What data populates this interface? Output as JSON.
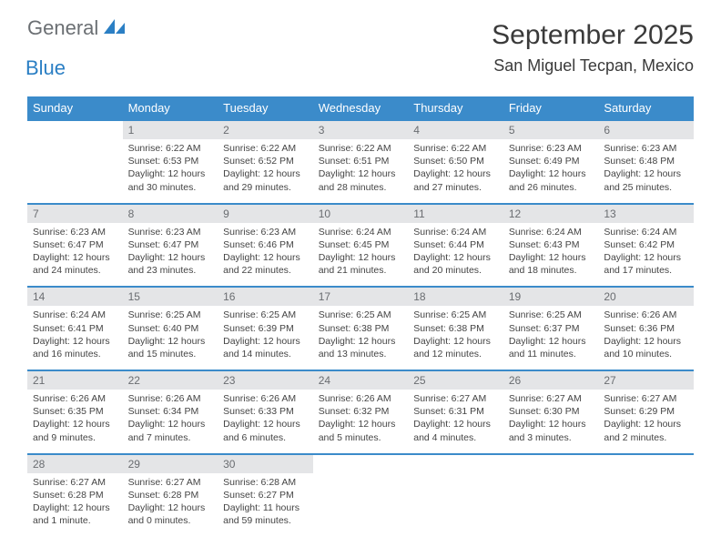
{
  "logo": {
    "text1": "General",
    "text2": "Blue",
    "icon_fill": "#2b7fc4"
  },
  "title": "September 2025",
  "location": "San Miguel Tecpan, Mexico",
  "colors": {
    "header_bg": "#3b8bca",
    "header_fg": "#ffffff",
    "daynum_bg": "#e4e5e7",
    "daynum_fg": "#6a6d71",
    "rule": "#3b8bca",
    "body_text": "#444444",
    "title_text": "#3a3a3a"
  },
  "day_headers": [
    "Sunday",
    "Monday",
    "Tuesday",
    "Wednesday",
    "Thursday",
    "Friday",
    "Saturday"
  ],
  "weeks": [
    [
      null,
      {
        "n": "1",
        "sunrise": "6:22 AM",
        "sunset": "6:53 PM",
        "daylight": "12 hours and 30 minutes."
      },
      {
        "n": "2",
        "sunrise": "6:22 AM",
        "sunset": "6:52 PM",
        "daylight": "12 hours and 29 minutes."
      },
      {
        "n": "3",
        "sunrise": "6:22 AM",
        "sunset": "6:51 PM",
        "daylight": "12 hours and 28 minutes."
      },
      {
        "n": "4",
        "sunrise": "6:22 AM",
        "sunset": "6:50 PM",
        "daylight": "12 hours and 27 minutes."
      },
      {
        "n": "5",
        "sunrise": "6:23 AM",
        "sunset": "6:49 PM",
        "daylight": "12 hours and 26 minutes."
      },
      {
        "n": "6",
        "sunrise": "6:23 AM",
        "sunset": "6:48 PM",
        "daylight": "12 hours and 25 minutes."
      }
    ],
    [
      {
        "n": "7",
        "sunrise": "6:23 AM",
        "sunset": "6:47 PM",
        "daylight": "12 hours and 24 minutes."
      },
      {
        "n": "8",
        "sunrise": "6:23 AM",
        "sunset": "6:47 PM",
        "daylight": "12 hours and 23 minutes."
      },
      {
        "n": "9",
        "sunrise": "6:23 AM",
        "sunset": "6:46 PM",
        "daylight": "12 hours and 22 minutes."
      },
      {
        "n": "10",
        "sunrise": "6:24 AM",
        "sunset": "6:45 PM",
        "daylight": "12 hours and 21 minutes."
      },
      {
        "n": "11",
        "sunrise": "6:24 AM",
        "sunset": "6:44 PM",
        "daylight": "12 hours and 20 minutes."
      },
      {
        "n": "12",
        "sunrise": "6:24 AM",
        "sunset": "6:43 PM",
        "daylight": "12 hours and 18 minutes."
      },
      {
        "n": "13",
        "sunrise": "6:24 AM",
        "sunset": "6:42 PM",
        "daylight": "12 hours and 17 minutes."
      }
    ],
    [
      {
        "n": "14",
        "sunrise": "6:24 AM",
        "sunset": "6:41 PM",
        "daylight": "12 hours and 16 minutes."
      },
      {
        "n": "15",
        "sunrise": "6:25 AM",
        "sunset": "6:40 PM",
        "daylight": "12 hours and 15 minutes."
      },
      {
        "n": "16",
        "sunrise": "6:25 AM",
        "sunset": "6:39 PM",
        "daylight": "12 hours and 14 minutes."
      },
      {
        "n": "17",
        "sunrise": "6:25 AM",
        "sunset": "6:38 PM",
        "daylight": "12 hours and 13 minutes."
      },
      {
        "n": "18",
        "sunrise": "6:25 AM",
        "sunset": "6:38 PM",
        "daylight": "12 hours and 12 minutes."
      },
      {
        "n": "19",
        "sunrise": "6:25 AM",
        "sunset": "6:37 PM",
        "daylight": "12 hours and 11 minutes."
      },
      {
        "n": "20",
        "sunrise": "6:26 AM",
        "sunset": "6:36 PM",
        "daylight": "12 hours and 10 minutes."
      }
    ],
    [
      {
        "n": "21",
        "sunrise": "6:26 AM",
        "sunset": "6:35 PM",
        "daylight": "12 hours and 9 minutes."
      },
      {
        "n": "22",
        "sunrise": "6:26 AM",
        "sunset": "6:34 PM",
        "daylight": "12 hours and 7 minutes."
      },
      {
        "n": "23",
        "sunrise": "6:26 AM",
        "sunset": "6:33 PM",
        "daylight": "12 hours and 6 minutes."
      },
      {
        "n": "24",
        "sunrise": "6:26 AM",
        "sunset": "6:32 PM",
        "daylight": "12 hours and 5 minutes."
      },
      {
        "n": "25",
        "sunrise": "6:27 AM",
        "sunset": "6:31 PM",
        "daylight": "12 hours and 4 minutes."
      },
      {
        "n": "26",
        "sunrise": "6:27 AM",
        "sunset": "6:30 PM",
        "daylight": "12 hours and 3 minutes."
      },
      {
        "n": "27",
        "sunrise": "6:27 AM",
        "sunset": "6:29 PM",
        "daylight": "12 hours and 2 minutes."
      }
    ],
    [
      {
        "n": "28",
        "sunrise": "6:27 AM",
        "sunset": "6:28 PM",
        "daylight": "12 hours and 1 minute."
      },
      {
        "n": "29",
        "sunrise": "6:27 AM",
        "sunset": "6:28 PM",
        "daylight": "12 hours and 0 minutes."
      },
      {
        "n": "30",
        "sunrise": "6:28 AM",
        "sunset": "6:27 PM",
        "daylight": "11 hours and 59 minutes."
      },
      null,
      null,
      null,
      null
    ]
  ],
  "labels": {
    "sunrise": "Sunrise: ",
    "sunset": "Sunset: ",
    "daylight": "Daylight: "
  }
}
